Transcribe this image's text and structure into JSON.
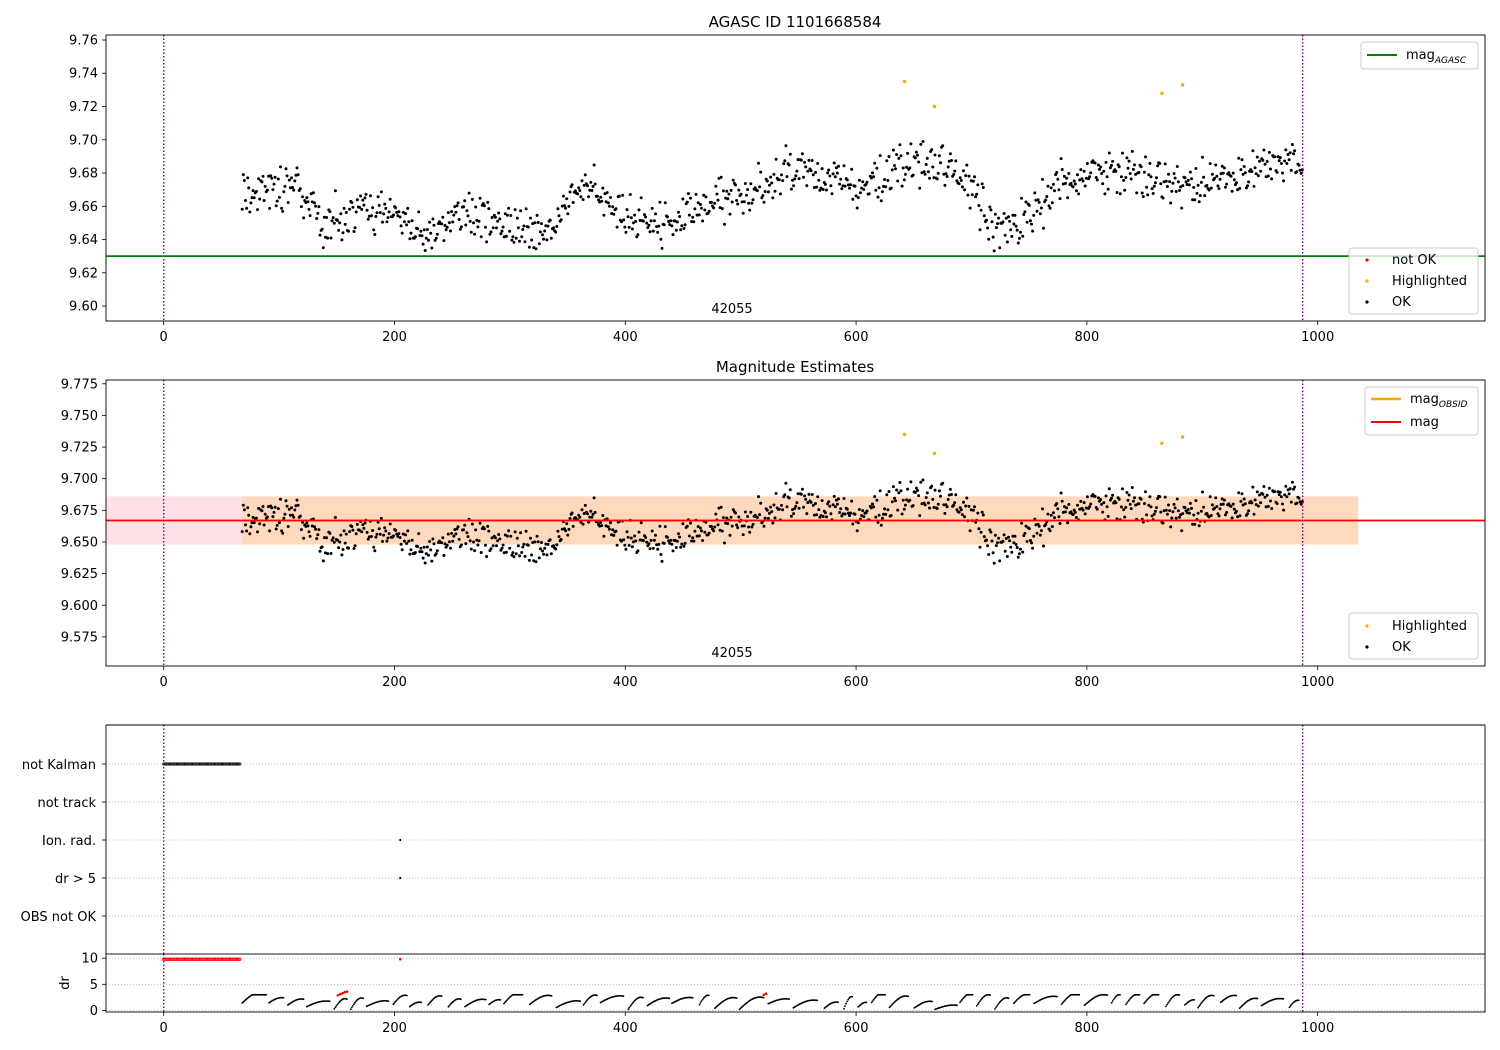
{
  "colors": {
    "ok": "#000000",
    "not_ok": "#ff0000",
    "highlighted": "#ffa500",
    "mag_agasc": "#008000",
    "mag_obsid": "#ffa500",
    "mag": "#ff0000",
    "band_outer": "#ffe0e6",
    "band_inner": "#ffd9bd",
    "obs_boundary": "#800080",
    "grid": "#b0b0b0"
  },
  "chart_data": [
    {
      "type": "scatter",
      "title": "AGASC ID 1101668584",
      "xlim": [
        -50,
        1145
      ],
      "ylim": [
        9.591,
        9.763
      ],
      "xticks": [
        "0",
        "200",
        "400",
        "600",
        "800",
        "1000"
      ],
      "yticks": [
        "9.60",
        "9.62",
        "9.64",
        "9.66",
        "9.68",
        "9.70",
        "9.72",
        "9.74",
        "9.76"
      ],
      "obsid_label": "42055",
      "obsid_label_x": 490,
      "obsid_boundaries": [
        0,
        987
      ],
      "hlines": [
        {
          "name": "mag_AGASC",
          "y": 9.63
        }
      ],
      "highlighted": {
        "x": [
          642,
          668,
          865,
          883
        ],
        "y": [
          9.735,
          9.72,
          9.728,
          9.733
        ]
      },
      "legend_upper": [
        {
          "name": "mag",
          "sub": "AGASC",
          "marker": "line",
          "color_key": "mag_agasc"
        }
      ],
      "legend_lower": [
        {
          "name": "not OK",
          "marker": "dot",
          "color_key": "not_ok"
        },
        {
          "name": "Highlighted",
          "marker": "dot",
          "color_key": "highlighted"
        },
        {
          "name": "OK",
          "marker": "dot",
          "color_key": "ok"
        }
      ]
    },
    {
      "type": "scatter",
      "title": "Magnitude Estimates",
      "xlim": [
        -50,
        1145
      ],
      "ylim": [
        9.552,
        9.778
      ],
      "xticks": [
        "0",
        "200",
        "400",
        "600",
        "800",
        "1000"
      ],
      "yticks": [
        "9.575",
        "9.600",
        "9.625",
        "9.650",
        "9.675",
        "9.700",
        "9.725",
        "9.750",
        "9.775"
      ],
      "obsid_label": "42055",
      "obsid_label_x": 490,
      "obsid_boundaries": [
        0,
        987
      ],
      "hlines": [
        {
          "name": "mag_OBSID",
          "y": 9.667,
          "x_range": [
            68,
            987
          ]
        },
        {
          "name": "mag",
          "y": 9.667
        }
      ],
      "bands": [
        {
          "ymin": 9.648,
          "ymax": 9.686,
          "x_range": [
            -50,
            1035
          ],
          "color_key": "band_outer"
        },
        {
          "ymin": 9.648,
          "ymax": 9.686,
          "x_range": [
            68,
            1035
          ],
          "color_key": "band_inner"
        }
      ],
      "highlighted": {
        "x": [
          642,
          668,
          865,
          883
        ],
        "y": [
          9.735,
          9.72,
          9.728,
          9.733
        ]
      },
      "legend_upper": [
        {
          "name": "mag",
          "sub": "OBSID",
          "marker": "line",
          "color_key": "mag_obsid"
        },
        {
          "name": "mag",
          "sub": "",
          "marker": "line",
          "color_key": "mag"
        }
      ],
      "legend_lower": [
        {
          "name": "Highlighted",
          "marker": "dot",
          "color_key": "highlighted"
        },
        {
          "name": "OK",
          "marker": "dot",
          "color_key": "ok"
        }
      ]
    },
    {
      "type": "scatter",
      "title": "",
      "xlim": [
        -50,
        1145
      ],
      "categories": [
        "not Kalman",
        "not track",
        "Ion. rad.",
        "dr > 5",
        "OBS not OK"
      ],
      "flags": [
        {
          "category": "not Kalman",
          "x_range": [
            0,
            66
          ],
          "y_level": 1
        },
        {
          "category": "Ion. rad.",
          "x": [
            205
          ],
          "y_level": 3
        },
        {
          "category": "dr > 5",
          "x": [
            205
          ],
          "y_level": 4
        }
      ],
      "obsid_boundaries": [
        0,
        987
      ]
    },
    {
      "type": "line",
      "title": "",
      "ylabel": "dr",
      "xlim": [
        -50,
        1145
      ],
      "ylim": [
        -0.3,
        10.8
      ],
      "yticks": [
        "0",
        "5",
        "10"
      ],
      "xticks": [
        "0",
        "200",
        "400",
        "600",
        "800",
        "1000"
      ],
      "clipped_red": {
        "x_range": [
          0,
          66
        ],
        "y": 9.8
      },
      "red_points": {
        "x": [
          151,
          153,
          155,
          157,
          159,
          205,
          520,
          522
        ],
        "y": [
          2.9,
          3.1,
          3.3,
          3.5,
          3.6,
          9.8,
          3.0,
          3.2
        ]
      },
      "obsid_boundaries": [
        0,
        987
      ]
    }
  ]
}
